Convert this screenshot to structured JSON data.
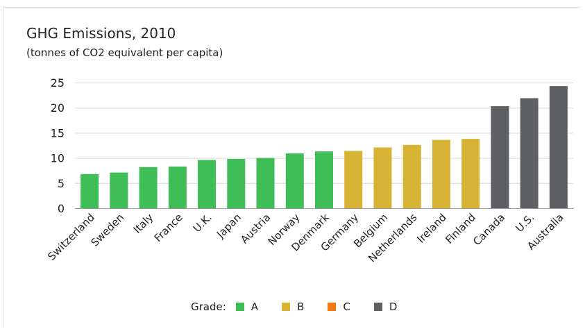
{
  "chart_data": {
    "type": "bar",
    "title": "GHG Emissions, 2010",
    "subtitle": "(tonnes of CO2 equivalent per capita)",
    "xlabel": "",
    "ylabel": "",
    "ylim": [
      0,
      25
    ],
    "yticks": [
      0,
      5,
      10,
      15,
      20,
      25
    ],
    "grid": true,
    "categories": [
      "Switzerland",
      "Sweden",
      "Italy",
      "France",
      "U.K.",
      "Japan",
      "Austria",
      "Norway",
      "Denmark",
      "Germany",
      "Belgium",
      "Netherlands",
      "Ireland",
      "Finland",
      "Canada",
      "U.S.",
      "Australia"
    ],
    "values": [
      6.8,
      7.1,
      8.2,
      8.3,
      9.6,
      9.8,
      10.0,
      10.9,
      11.3,
      11.4,
      12.1,
      12.6,
      13.6,
      13.8,
      20.3,
      21.9,
      24.3
    ],
    "grades": [
      "A",
      "A",
      "A",
      "A",
      "A",
      "A",
      "A",
      "A",
      "A",
      "B",
      "B",
      "B",
      "B",
      "B",
      "D",
      "D",
      "D"
    ],
    "legend": {
      "title": "Grade:",
      "placement": "bottom-center",
      "items": [
        {
          "label": "A",
          "color": "#3fbd56"
        },
        {
          "label": "B",
          "color": "#d6b334"
        },
        {
          "label": "C",
          "color": "#f27c12"
        },
        {
          "label": "D",
          "color": "#5e6064"
        }
      ]
    }
  }
}
